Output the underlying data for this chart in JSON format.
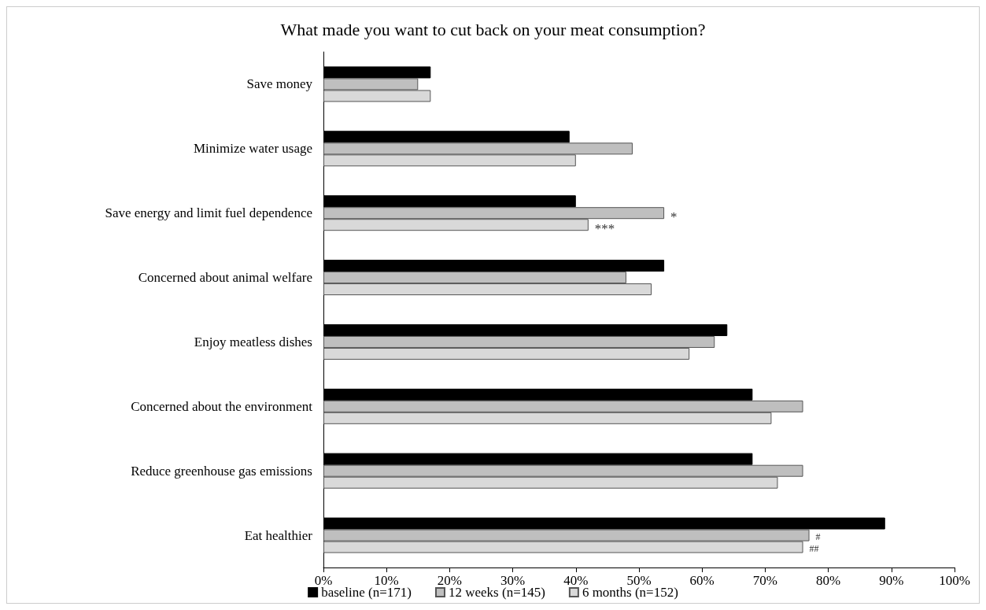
{
  "chart_data": {
    "type": "bar",
    "orientation": "horizontal",
    "title": "What made you want to cut back on your meat consumption?",
    "categories": [
      "Save money",
      "Minimize water usage",
      "Save energy and limit fuel dependence",
      "Concerned about animal welfare",
      "Enjoy meatless dishes",
      "Concerned about the environment",
      "Reduce greenhouse gas emissions",
      "Eat healthier"
    ],
    "series": [
      {
        "name": "baseline (n=171)",
        "color": "#000000",
        "values": [
          17,
          39,
          40,
          54,
          64,
          68,
          68,
          89
        ]
      },
      {
        "name": "12 weeks (n=145)",
        "color": "#bfbfbf",
        "values": [
          15,
          49,
          54,
          48,
          62,
          76,
          76,
          77
        ]
      },
      {
        "name": "6 months (n=152)",
        "color": "#d9d9d9",
        "values": [
          17,
          40,
          42,
          52,
          58,
          71,
          72,
          76
        ]
      }
    ],
    "xlim": [
      0,
      100
    ],
    "xticks": [
      {
        "value": 0,
        "label": "0%"
      },
      {
        "value": 10,
        "label": "10%"
      },
      {
        "value": 20,
        "label": "20%"
      },
      {
        "value": 30,
        "label": "30%"
      },
      {
        "value": 40,
        "label": "40%"
      },
      {
        "value": 50,
        "label": "50%"
      },
      {
        "value": 60,
        "label": "60%"
      },
      {
        "value": 70,
        "label": "70%"
      },
      {
        "value": 80,
        "label": "80%"
      },
      {
        "value": 90,
        "label": "90%"
      },
      {
        "value": 100,
        "label": "100%"
      }
    ],
    "annotations": [
      {
        "text": "*",
        "x": 54,
        "y": "Save energy and limit fuel dependence"
      },
      "***",
      {
        "text": "#",
        "x": 77,
        "y": "Eat healthier"
      },
      "##"
    ],
    "legend": "bottom",
    "grid": false
  }
}
